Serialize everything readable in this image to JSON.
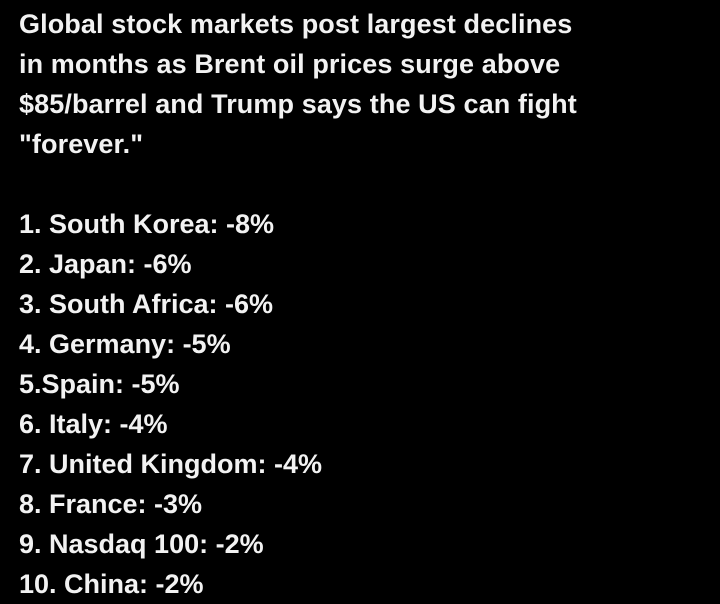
{
  "post": {
    "headline": "Global stock markets post largest declines\nin months as Brent oil prices surge above\n$85/barrel and Trump says the US can fight\n\"forever.\"",
    "items": [
      "1. South Korea: -8%",
      "2. Japan: -6%",
      "3. South Africa: -6%",
      "4. Germany: -5%",
      "5.Spain: -5%",
      "6. Italy: -4%",
      "7. United Kingdom: -4%",
      "8. France: -3%",
      "9. Nasdaq 100: -2%",
      "10. China: -2%"
    ]
  },
  "colors": {
    "background": "#000000",
    "text": "#f2f2f2"
  }
}
